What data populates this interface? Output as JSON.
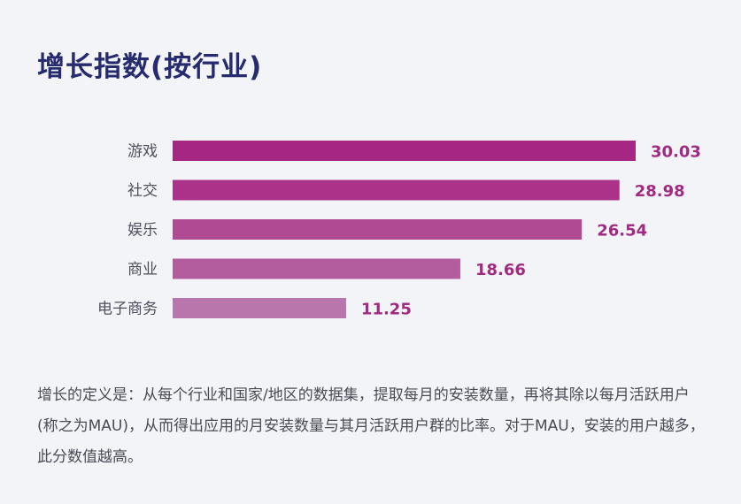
{
  "title": "增长指数(按行业)",
  "chart_data": {
    "type": "bar",
    "orientation": "horizontal",
    "categories": [
      "游戏",
      "社交",
      "娱乐",
      "商业",
      "电子商务"
    ],
    "values": [
      30.03,
      28.98,
      26.54,
      18.66,
      11.25
    ],
    "value_labels": [
      "30.03",
      "28.98",
      "26.54",
      "18.66",
      "11.25"
    ],
    "xlim": [
      0,
      30.03
    ],
    "grid": false,
    "legend": "none",
    "colors": [
      "#a62683",
      "#ab3288",
      "#b04a92",
      "#b45d9e",
      "#b876ad"
    ],
    "label_color": "#a12a82"
  },
  "note": "增长的定义是：从每个行业和国家/地区的数据集，提取每月的安装数量，再将其除以每月活跃用户(称之为MAU)，从而得出应用的月安装数量与其月活跃用户群的比率。对于MAU，安装的用户越多，此分数值越高。"
}
